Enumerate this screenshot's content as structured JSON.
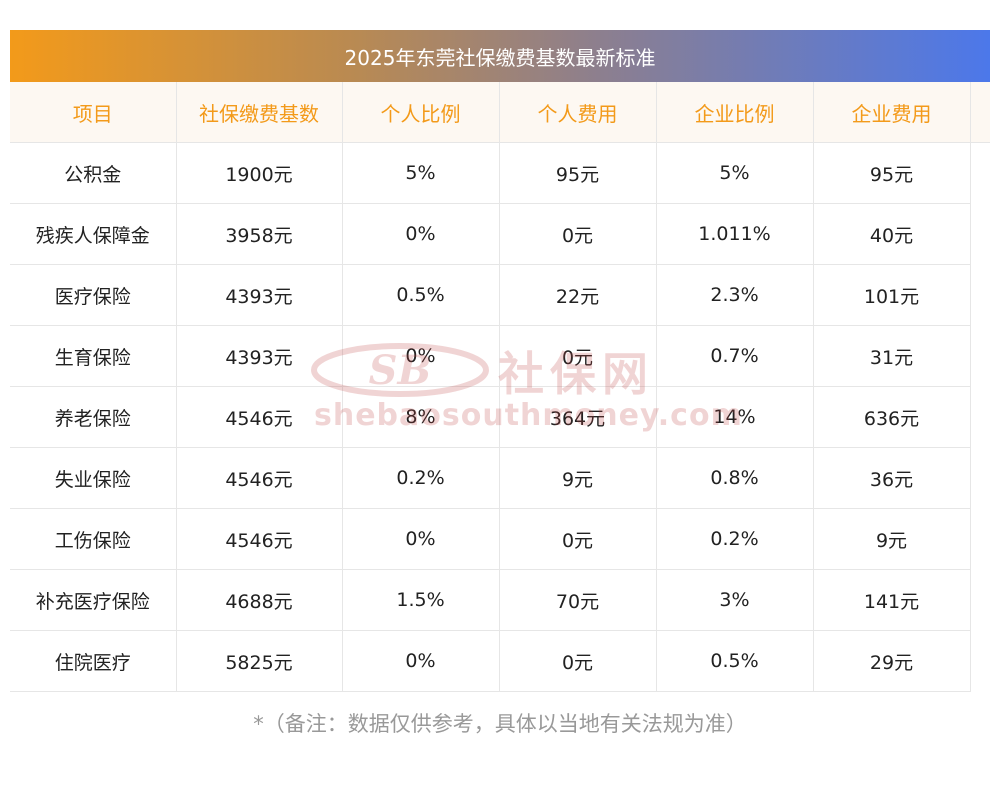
{
  "title": "2025年东莞社保缴费基数最新标准",
  "table": {
    "headers": [
      "项目",
      "社保缴费基数",
      "个人比例",
      "个人费用",
      "企业比例",
      "企业费用"
    ],
    "rows": [
      [
        "公积金",
        "1900元",
        "5%",
        "95元",
        "5%",
        "95元"
      ],
      [
        "残疾人保障金",
        "3958元",
        "0%",
        "0元",
        "1.011%",
        "40元"
      ],
      [
        "医疗保险",
        "4393元",
        "0.5%",
        "22元",
        "2.3%",
        "101元"
      ],
      [
        "生育保险",
        "4393元",
        "0%",
        "0元",
        "0.7%",
        "31元"
      ],
      [
        "养老保险",
        "4546元",
        "8%",
        "364元",
        "14%",
        "636元"
      ],
      [
        "失业保险",
        "4546元",
        "0.2%",
        "9元",
        "0.8%",
        "36元"
      ],
      [
        "工伤保险",
        "4546元",
        "0%",
        "0元",
        "0.2%",
        "9元"
      ],
      [
        "补充医疗保险",
        "4688元",
        "1.5%",
        "70元",
        "3%",
        "141元"
      ],
      [
        "住院医疗",
        "5825元",
        "0%",
        "0元",
        "0.5%",
        "29元"
      ]
    ]
  },
  "watermark": {
    "logo_text": "SB",
    "brand_text": "社保网",
    "url": "shebaosouthmoney.com"
  },
  "footnote": "*（备注：数据仅供参考，具体以当地有关法规为准）",
  "colors": {
    "banner_start": "#f39a1a",
    "banner_end": "#4c78ea",
    "header_text": "#f39a1a",
    "header_bg": "#fdf8f2",
    "watermark": "#c04040"
  }
}
